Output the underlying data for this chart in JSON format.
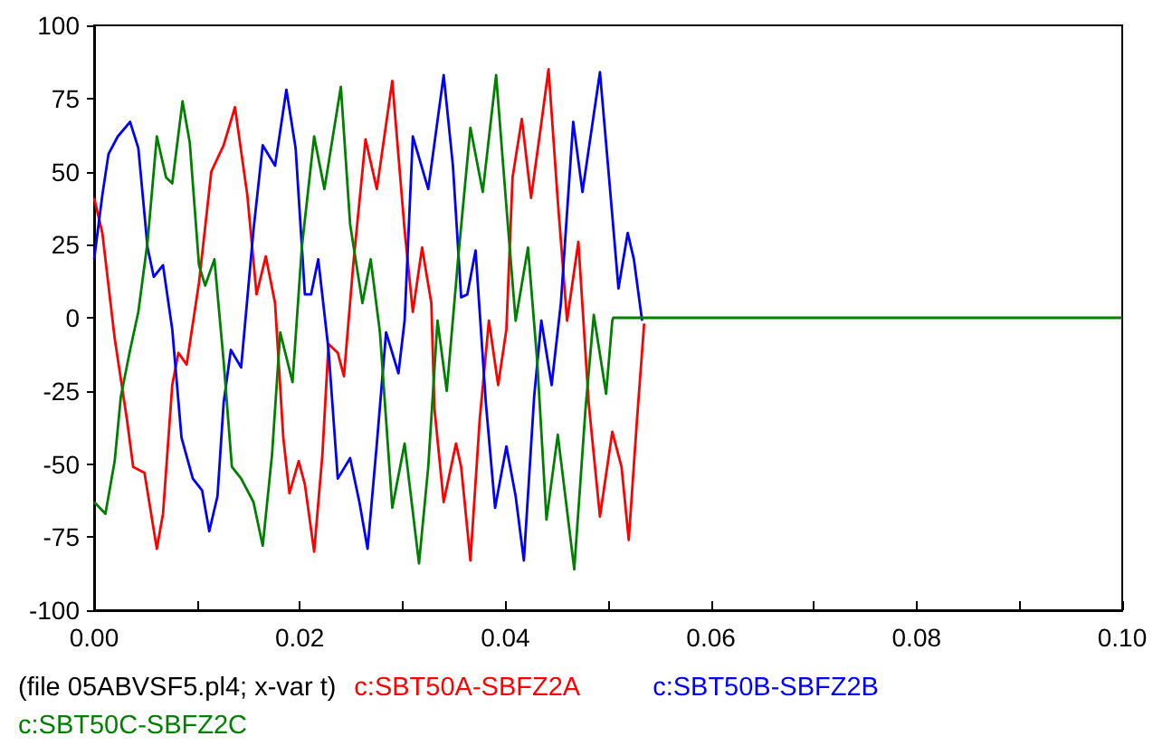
{
  "chart_data": {
    "type": "line",
    "xlim": [
      0,
      0.1
    ],
    "ylim": [
      -100,
      100
    ],
    "xticks": [
      {
        "value": 0,
        "label": "0.00"
      },
      {
        "value": 0.01,
        "label": null
      },
      {
        "value": 0.02,
        "label": "0.02"
      },
      {
        "value": 0.03,
        "label": null
      },
      {
        "value": 0.04,
        "label": "0.04"
      },
      {
        "value": 0.05,
        "label": null
      },
      {
        "value": 0.06,
        "label": "0.06"
      },
      {
        "value": 0.07,
        "label": null
      },
      {
        "value": 0.08,
        "label": "0.08"
      },
      {
        "value": 0.09,
        "label": null
      },
      {
        "value": 0.1,
        "label": "0.10"
      }
    ],
    "yticks": [
      -100,
      -75,
      -50,
      -25,
      0,
      25,
      50,
      75,
      100
    ],
    "grid": false,
    "legend": "bottom",
    "marker": "none",
    "line_style": "solid",
    "annotations": [
      "(file 05ABVSF5.pl4; x-var t)"
    ],
    "series": [
      {
        "name": "c:SBT50A-SBFZ2A",
        "color": "#ff0000",
        "x": [
          0,
          0.0008,
          0.002,
          0.0032,
          0.0038,
          0.0049,
          0.0061,
          0.0067,
          0.0076,
          0.0082,
          0.009,
          0.0102,
          0.0114,
          0.0126,
          0.0137,
          0.0149,
          0.0158,
          0.0167,
          0.0176,
          0.0184,
          0.019,
          0.0199,
          0.0205,
          0.0214,
          0.0222,
          0.0228,
          0.0237,
          0.0243,
          0.0252,
          0.0264,
          0.0275,
          0.029,
          0.0302,
          0.031,
          0.0319,
          0.0328,
          0.0331,
          0.034,
          0.0352,
          0.0357,
          0.0366,
          0.0375,
          0.0384,
          0.0393,
          0.0401,
          0.0407,
          0.0416,
          0.0425,
          0.0434,
          0.0442,
          0.0451,
          0.046,
          0.0471,
          0.0481,
          0.0492,
          0.0504,
          0.0513,
          0.052,
          0.0528,
          0.0535
        ],
        "values": [
          41,
          29,
          -7,
          -35,
          -51,
          -53,
          -79,
          -67,
          -23,
          -12,
          -16,
          12,
          50,
          59,
          72,
          42,
          8,
          21,
          5,
          -41,
          -60,
          -49,
          -57,
          -80,
          -47,
          -9,
          -12,
          -20,
          18,
          61,
          44,
          81,
          30,
          2,
          24,
          5,
          -31,
          -63,
          -43,
          -51,
          -83,
          -35,
          -1,
          -23,
          -4,
          48,
          68,
          41,
          64,
          85,
          40,
          -1,
          26,
          -29,
          -68,
          -39,
          -51,
          -76,
          -35,
          -2
        ]
      },
      {
        "name": "c:SBT50B-SBFZ2B",
        "color": "#0000ff",
        "x": [
          0,
          0.0008,
          0.0014,
          0.0023,
          0.0035,
          0.0043,
          0.0052,
          0.0058,
          0.0067,
          0.0076,
          0.0085,
          0.0096,
          0.0105,
          0.0112,
          0.012,
          0.0126,
          0.0133,
          0.0143,
          0.0155,
          0.0164,
          0.0176,
          0.0187,
          0.0196,
          0.0205,
          0.0211,
          0.0218,
          0.0228,
          0.0237,
          0.0249,
          0.0258,
          0.0266,
          0.0275,
          0.0284,
          0.0296,
          0.0302,
          0.031,
          0.0325,
          0.034,
          0.0349,
          0.0357,
          0.0363,
          0.0371,
          0.0381,
          0.039,
          0.0401,
          0.041,
          0.0418,
          0.0428,
          0.0435,
          0.0445,
          0.0454,
          0.0466,
          0.0475,
          0.0492,
          0.0504,
          0.051,
          0.0519,
          0.0525,
          0.0533
        ],
        "values": [
          20,
          42,
          56,
          62,
          67,
          58,
          24,
          14,
          18,
          -4,
          -41,
          -55,
          -59,
          -73,
          -61,
          -29,
          -11,
          -17,
          30,
          59,
          52,
          78,
          58,
          8,
          8,
          20,
          -11,
          -55,
          -48,
          -63,
          -79,
          -43,
          -5,
          -19,
          -1,
          62,
          44,
          83,
          52,
          7,
          8,
          23,
          -29,
          -65,
          -44,
          -61,
          -83,
          -27,
          -1,
          -23,
          5,
          67,
          43,
          84,
          35,
          10,
          29,
          20,
          -1
        ]
      },
      {
        "name": "c:SBT50C-SBFZ2C",
        "color": "#008000",
        "x": [
          0,
          0.0011,
          0.002,
          0.0026,
          0.0035,
          0.0043,
          0.0052,
          0.0061,
          0.007,
          0.0076,
          0.0086,
          0.0093,
          0.0102,
          0.0108,
          0.0117,
          0.0126,
          0.0134,
          0.0143,
          0.0155,
          0.0164,
          0.0173,
          0.0181,
          0.0193,
          0.0202,
          0.0214,
          0.0224,
          0.024,
          0.0249,
          0.0261,
          0.0269,
          0.0278,
          0.029,
          0.0302,
          0.0316,
          0.0325,
          0.0334,
          0.0343,
          0.0354,
          0.0366,
          0.0378,
          0.0391,
          0.0401,
          0.041,
          0.0422,
          0.0431,
          0.044,
          0.0451,
          0.0467,
          0.0478,
          0.0486,
          0.0498,
          0.0504,
          0.0505,
          0.1
        ],
        "values": [
          -63,
          -67,
          -49,
          -27,
          -11,
          2,
          26,
          62,
          48,
          46,
          74,
          60,
          18,
          11,
          20,
          -15,
          -51,
          -55,
          -63,
          -78,
          -47,
          -5,
          -22,
          24,
          62,
          44,
          79,
          32,
          5,
          20,
          -5,
          -65,
          -43,
          -84,
          -51,
          -1,
          -25,
          20,
          65,
          43,
          83,
          38,
          -1,
          24,
          -15,
          -69,
          -40,
          -86,
          -31,
          1,
          -26,
          -1,
          0,
          0
        ]
      }
    ]
  }
}
